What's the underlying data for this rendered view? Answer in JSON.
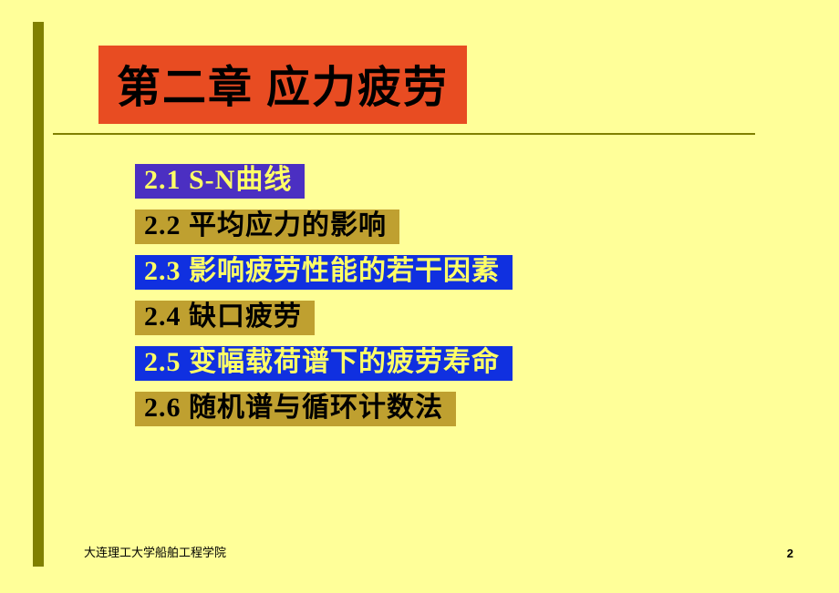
{
  "title": "第二章  应力疲劳",
  "items": [
    {
      "text": "2.1  S-N曲线",
      "style": "blue-on-purple"
    },
    {
      "text": "2.2 平均应力的影响",
      "style": "black-on-olive"
    },
    {
      "text": "2.3 影响疲劳性能的若干因素",
      "style": "yellow-on-blue"
    },
    {
      "text": "2.4 缺口疲劳",
      "style": "black-on-olive"
    },
    {
      "text": "2.5  变幅载荷谱下的疲劳寿命",
      "style": "yellow-on-blue"
    },
    {
      "text": "2.6  随机谱与循环计数法",
      "style": "black-on-olive"
    }
  ],
  "footer": "大连理工大学船舶工程学院",
  "pageNumber": "2",
  "colors": {
    "background": "#ffff99",
    "accentBar": "#808000",
    "titleBg": "#e84c22",
    "oliveBg": "#bfa030",
    "blueBg": "#1030e0",
    "purpleBg": "#4b2fc2",
    "yellowText": "#ffff66"
  }
}
